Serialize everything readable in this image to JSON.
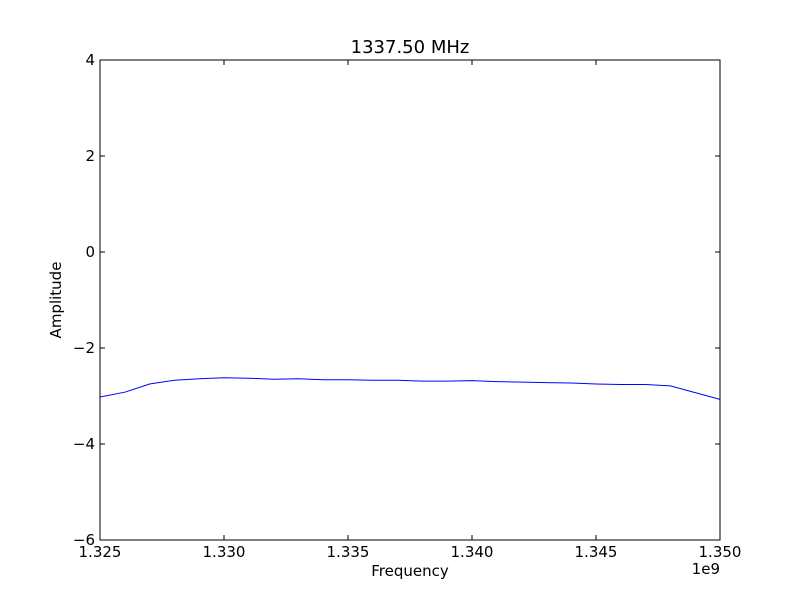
{
  "chart_data": {
    "type": "line",
    "title": "1337.50 MHz",
    "xlabel": "Frequency",
    "ylabel": "Amplitude",
    "x_offset_label": "1e9",
    "xlim": [
      1.325,
      1.35
    ],
    "ylim": [
      -6,
      4
    ],
    "x_ticks": [
      1.325,
      1.33,
      1.335,
      1.34,
      1.345,
      1.35
    ],
    "x_tick_labels": [
      "1.325",
      "1.330",
      "1.335",
      "1.340",
      "1.345",
      "1.350"
    ],
    "y_ticks": [
      4,
      2,
      0,
      -2,
      -4,
      -6
    ],
    "y_tick_labels": [
      "4",
      "2",
      "0",
      "−2",
      "−4",
      "−6"
    ],
    "grid": false,
    "line_color": "#0000ff",
    "series": [
      {
        "x": [
          1.325,
          1.326,
          1.327,
          1.328,
          1.329,
          1.33,
          1.331,
          1.332,
          1.333,
          1.334,
          1.335,
          1.336,
          1.337,
          1.338,
          1.339,
          1.34,
          1.341,
          1.342,
          1.343,
          1.344,
          1.345,
          1.346,
          1.347,
          1.348,
          1.349,
          1.35
        ],
        "y": [
          -3.02,
          -2.92,
          -2.75,
          -2.67,
          -2.64,
          -2.62,
          -2.63,
          -2.65,
          -2.64,
          -2.66,
          -2.66,
          -2.67,
          -2.67,
          -2.69,
          -2.69,
          -2.68,
          -2.7,
          -2.71,
          -2.72,
          -2.73,
          -2.75,
          -2.76,
          -2.76,
          -2.79,
          -2.93,
          -3.07
        ]
      }
    ]
  }
}
